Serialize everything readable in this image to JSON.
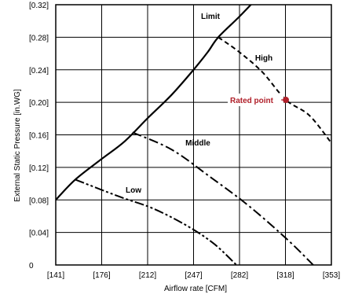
{
  "chart_data": {
    "type": "line",
    "title": "",
    "xlabel": "Airflow rate [CFM]",
    "ylabel": "External Static Pressure  [in.WG]",
    "xlim": [
      141,
      353
    ],
    "ylim": [
      0,
      0.32
    ],
    "x_ticks": [
      "[141]",
      "[176]",
      "[212]",
      "[247]",
      "[282]",
      "[318]",
      "[353]"
    ],
    "y_ticks": [
      "0",
      "[0.04]",
      "[0.08]",
      "[0.12]",
      "[0.16]",
      "[0.20]",
      "[0.24]",
      "[0.28]",
      "[0.32]"
    ],
    "grid": true,
    "series": [
      {
        "name": "Limit",
        "style": "solid",
        "x": [
          141,
          156,
          176,
          194,
          212,
          230,
          247,
          258,
          266,
          282,
          297
        ],
        "y": [
          0.08,
          0.105,
          0.13,
          0.152,
          0.181,
          0.209,
          0.24,
          0.262,
          0.28,
          0.305,
          0.33
        ]
      },
      {
        "name": "High",
        "style": "dashed",
        "x": [
          266,
          282,
          300,
          318,
          336,
          353
        ],
        "y": [
          0.28,
          0.262,
          0.237,
          0.203,
          0.184,
          0.15
        ]
      },
      {
        "name": "Middle",
        "style": "dash-dot",
        "x": [
          200,
          230,
          260,
          290,
          320,
          339
        ],
        "y": [
          0.163,
          0.142,
          0.108,
          0.072,
          0.03,
          0
        ]
      },
      {
        "name": "Low",
        "style": "dash-dot-dot",
        "x": [
          156,
          190,
          215,
          240,
          262,
          280
        ],
        "y": [
          0.105,
          0.084,
          0.07,
          0.05,
          0.027,
          0
        ]
      }
    ],
    "annotations": [
      {
        "text": "Rated point",
        "x": 318,
        "y": 0.203,
        "color": "#b0202a"
      }
    ]
  }
}
